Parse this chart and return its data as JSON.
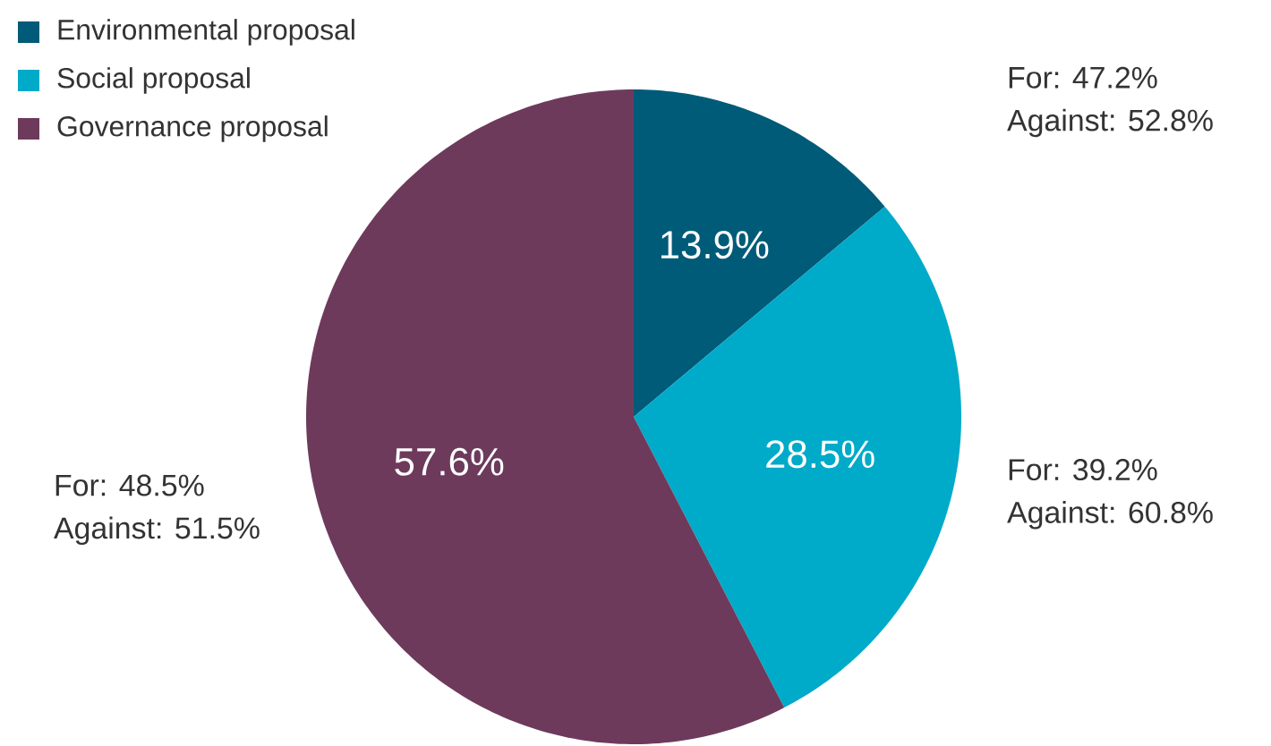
{
  "chart_data": {
    "type": "pie",
    "categories": [
      "Environmental proposal",
      "Social proposal",
      "Governance proposal"
    ],
    "values": [
      13.9,
      28.5,
      57.6
    ],
    "colors": [
      "#005b78",
      "#00aac9",
      "#6d3a5c"
    ],
    "value_labels": [
      "13.9%",
      "28.5%",
      "57.6%"
    ],
    "legend": "top left",
    "annotations": [
      "For: 47.2%",
      "Against: 52.8%",
      "For: 39.2%",
      "Against: 60.8%",
      "For: 48.5%",
      "Against: 51.5%"
    ]
  }
}
